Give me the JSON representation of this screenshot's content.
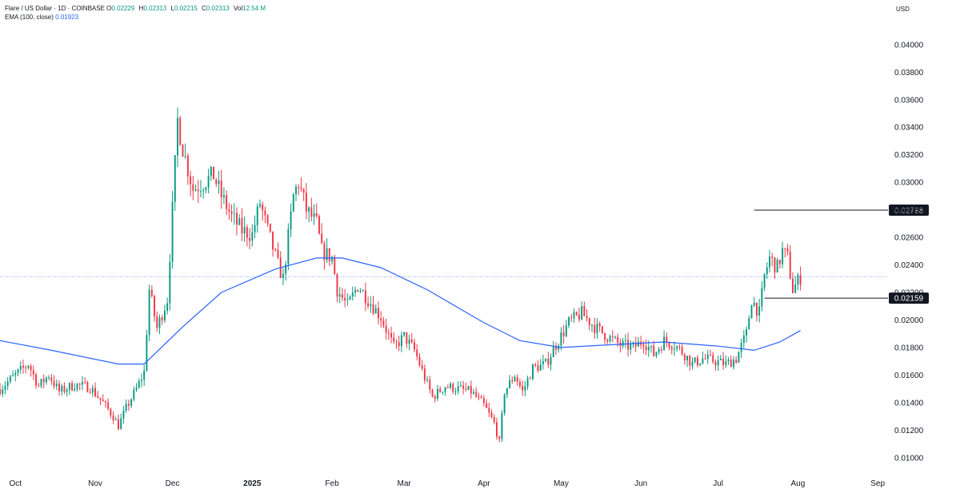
{
  "legend": {
    "symbol": "Flare / US Dollar · 1D · COINBASE",
    "open_label": "O",
    "open": "0.02229",
    "high_label": "H",
    "high": "0.02313",
    "low_label": "L",
    "low": "0.02215",
    "close_label": "C",
    "close": "0.02313",
    "vol_label": "Vol",
    "vol": "12.54 M",
    "ema_label": "EMA (100, close)",
    "ema_value": "0.01923"
  },
  "currency": "USD",
  "colors": {
    "up": "#089981",
    "down": "#f23645",
    "ema": "#2962ff",
    "text": "#131722"
  },
  "chart_data": {
    "type": "candlestick",
    "x_ticks": [
      {
        "label": "Oct",
        "x": "2024-10-01",
        "bold": false
      },
      {
        "label": "Nov",
        "x": "2024-11-01",
        "bold": false
      },
      {
        "label": "Dec",
        "x": "2024-12-01",
        "bold": false
      },
      {
        "label": "2025",
        "x": "2025-01-01",
        "bold": true
      },
      {
        "label": "Feb",
        "x": "2025-02-01",
        "bold": false
      },
      {
        "label": "Mar",
        "x": "2025-03-01",
        "bold": false
      },
      {
        "label": "Apr",
        "x": "2025-04-01",
        "bold": false
      },
      {
        "label": "May",
        "x": "2025-05-01",
        "bold": false
      },
      {
        "label": "Jun",
        "x": "2025-06-01",
        "bold": false
      },
      {
        "label": "Jul",
        "x": "2025-07-01",
        "bold": false
      },
      {
        "label": "Aug",
        "x": "2025-08-01",
        "bold": false
      },
      {
        "label": "Sep",
        "x": "2025-09-01",
        "bold": false
      }
    ],
    "y_ticks": [
      "0.01000",
      "0.01200",
      "0.01400",
      "0.01600",
      "0.01800",
      "0.02000",
      "0.02200",
      "0.02400",
      "0.02600",
      "0.02800",
      "0.03000",
      "0.03200",
      "0.03400",
      "0.03600",
      "0.03800",
      "0.04000"
    ],
    "ylim": [
      0.009,
      0.0415
    ],
    "xlim": [
      "2024-09-25",
      "2025-09-05"
    ],
    "current_price": 0.02313,
    "price_labels": [
      {
        "label": "0.02798",
        "value": 0.02798,
        "line_from": "2025-07-15"
      },
      {
        "label": "0.02159",
        "value": 0.02159,
        "line_from": "2025-07-19"
      }
    ],
    "closes": [
      [
        "2024-09-25",
        0.015
      ],
      [
        "2024-10-01",
        0.016
      ],
      [
        "2024-10-06",
        0.0168
      ],
      [
        "2024-10-10",
        0.0152
      ],
      [
        "2024-10-14",
        0.016
      ],
      [
        "2024-10-18",
        0.0148
      ],
      [
        "2024-10-24",
        0.0153
      ],
      [
        "2024-10-30",
        0.0151
      ],
      [
        "2024-11-04",
        0.014
      ],
      [
        "2024-11-08",
        0.013
      ],
      [
        "2024-11-10",
        0.0123
      ],
      [
        "2024-11-13",
        0.0136
      ],
      [
        "2024-11-17",
        0.015
      ],
      [
        "2024-11-20",
        0.0162
      ],
      [
        "2024-11-22",
        0.0222
      ],
      [
        "2024-11-25",
        0.0194
      ],
      [
        "2024-11-29",
        0.0215
      ],
      [
        "2024-12-03",
        0.0345
      ],
      [
        "2024-12-05",
        0.0325
      ],
      [
        "2024-12-09",
        0.0295
      ],
      [
        "2024-12-13",
        0.03
      ],
      [
        "2024-12-17",
        0.0305
      ],
      [
        "2024-12-20",
        0.029
      ],
      [
        "2024-12-24",
        0.0275
      ],
      [
        "2024-12-28",
        0.0265
      ],
      [
        "2025-01-01",
        0.0262
      ],
      [
        "2025-01-04",
        0.0285
      ],
      [
        "2025-01-07",
        0.0265
      ],
      [
        "2025-01-11",
        0.024
      ],
      [
        "2025-01-13",
        0.023
      ],
      [
        "2025-01-17",
        0.029
      ],
      [
        "2025-01-19",
        0.03
      ],
      [
        "2025-01-22",
        0.028
      ],
      [
        "2025-01-26",
        0.027
      ],
      [
        "2025-01-28",
        0.025
      ],
      [
        "2025-02-01",
        0.0245
      ],
      [
        "2025-02-03",
        0.0222
      ],
      [
        "2025-02-07",
        0.021
      ],
      [
        "2025-02-11",
        0.0225
      ],
      [
        "2025-02-15",
        0.0215
      ],
      [
        "2025-02-20",
        0.0202
      ],
      [
        "2025-02-25",
        0.018
      ],
      [
        "2025-03-01",
        0.0188
      ],
      [
        "2025-03-05",
        0.0178
      ],
      [
        "2025-03-09",
        0.0158
      ],
      [
        "2025-03-12",
        0.0144
      ],
      [
        "2025-03-17",
        0.0152
      ],
      [
        "2025-03-22",
        0.015
      ],
      [
        "2025-03-27",
        0.0148
      ],
      [
        "2025-04-01",
        0.0138
      ],
      [
        "2025-04-05",
        0.0125
      ],
      [
        "2025-04-07",
        0.0111
      ],
      [
        "2025-04-09",
        0.0148
      ],
      [
        "2025-04-13",
        0.016
      ],
      [
        "2025-04-16",
        0.0148
      ],
      [
        "2025-04-20",
        0.0165
      ],
      [
        "2025-04-25",
        0.0168
      ],
      [
        "2025-04-29",
        0.0182
      ],
      [
        "2025-05-04",
        0.0198
      ],
      [
        "2025-05-09",
        0.0205
      ],
      [
        "2025-05-14",
        0.0195
      ],
      [
        "2025-05-19",
        0.0188
      ],
      [
        "2025-05-24",
        0.0182
      ],
      [
        "2025-05-29",
        0.018
      ],
      [
        "2025-06-02",
        0.0185
      ],
      [
        "2025-06-06",
        0.0175
      ],
      [
        "2025-06-10",
        0.0185
      ],
      [
        "2025-06-14",
        0.0182
      ],
      [
        "2025-06-18",
        0.0175
      ],
      [
        "2025-06-21",
        0.0168
      ],
      [
        "2025-06-25",
        0.0172
      ],
      [
        "2025-06-30",
        0.017
      ],
      [
        "2025-07-04",
        0.0168
      ],
      [
        "2025-07-08",
        0.0172
      ],
      [
        "2025-07-12",
        0.019
      ],
      [
        "2025-07-14",
        0.0215
      ],
      [
        "2025-07-17",
        0.0205
      ],
      [
        "2025-07-19",
        0.0232
      ],
      [
        "2025-07-21",
        0.0245
      ],
      [
        "2025-07-24",
        0.0238
      ],
      [
        "2025-07-26",
        0.025
      ],
      [
        "2025-07-28",
        0.0245
      ],
      [
        "2025-07-30",
        0.0222
      ],
      [
        "2025-08-02",
        0.0231
      ]
    ],
    "ema": [
      [
        "2024-09-25",
        0.0185
      ],
      [
        "2024-10-15",
        0.0178
      ],
      [
        "2024-11-10",
        0.0168
      ],
      [
        "2024-11-20",
        0.0168
      ],
      [
        "2024-12-05",
        0.0195
      ],
      [
        "2024-12-20",
        0.022
      ],
      [
        "2025-01-10",
        0.0237
      ],
      [
        "2025-01-26",
        0.0245
      ],
      [
        "2025-02-05",
        0.0245
      ],
      [
        "2025-02-20",
        0.0238
      ],
      [
        "2025-03-10",
        0.0222
      ],
      [
        "2025-04-01",
        0.0198
      ],
      [
        "2025-04-15",
        0.0185
      ],
      [
        "2025-05-01",
        0.018
      ],
      [
        "2025-05-20",
        0.0182
      ],
      [
        "2025-06-10",
        0.0184
      ],
      [
        "2025-07-01",
        0.0181
      ],
      [
        "2025-07-15",
        0.0178
      ],
      [
        "2025-07-25",
        0.0184
      ],
      [
        "2025-08-02",
        0.01923
      ]
    ]
  }
}
